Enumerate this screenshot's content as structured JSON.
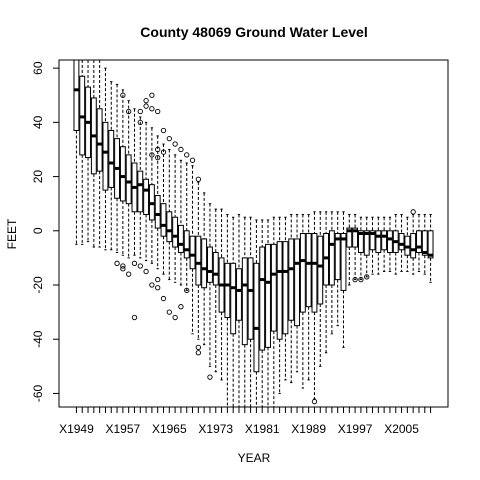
{
  "chart_data": {
    "type": "box",
    "title": "County 48069  Ground Water Level",
    "xlabel": "YEAR",
    "ylabel": "FEET",
    "ylim": [
      -65,
      63
    ],
    "yticks": [
      60,
      40,
      20,
      0,
      -20,
      -40,
      -60
    ],
    "xlim": [
      1946,
      2013
    ],
    "xtick_labels": [
      "X1949",
      "X1957",
      "X1965",
      "X1973",
      "X1981",
      "X1989",
      "X1997",
      "X2005"
    ],
    "grid": false,
    "boxes": [
      {
        "year": 1949,
        "q1": 37,
        "median": 52,
        "q3": 63,
        "whisker_low": -5,
        "whisker_high": 63,
        "outliers": []
      },
      {
        "year": 1950,
        "q1": 28,
        "median": 42,
        "q3": 57,
        "whisker_low": -5,
        "whisker_high": 63,
        "outliers": []
      },
      {
        "year": 1951,
        "q1": 27,
        "median": 40,
        "q3": 53,
        "whisker_low": -4,
        "whisker_high": 63,
        "outliers": []
      },
      {
        "year": 1952,
        "q1": 21,
        "median": 35,
        "q3": 49,
        "whisker_low": -6,
        "whisker_high": 63,
        "outliers": []
      },
      {
        "year": 1953,
        "q1": 22,
        "median": 32,
        "q3": 45,
        "whisker_low": -6,
        "whisker_high": 63,
        "outliers": []
      },
      {
        "year": 1954,
        "q1": 15,
        "median": 29,
        "q3": 40,
        "whisker_low": -7,
        "whisker_high": 60,
        "outliers": []
      },
      {
        "year": 1955,
        "q1": 16,
        "median": 25,
        "q3": 37,
        "whisker_low": -7,
        "whisker_high": 55,
        "outliers": []
      },
      {
        "year": 1956,
        "q1": 12,
        "median": 23,
        "q3": 34,
        "whisker_low": -8,
        "whisker_high": 54,
        "outliers": [
          -12
        ]
      },
      {
        "year": 1957,
        "q1": 11,
        "median": 20,
        "q3": 31,
        "whisker_low": -9,
        "whisker_high": 52,
        "outliers": [
          -13,
          -14,
          50
        ]
      },
      {
        "year": 1958,
        "q1": 10,
        "median": 18,
        "q3": 28,
        "whisker_low": -10,
        "whisker_high": 48,
        "outliers": [
          -16,
          44
        ]
      },
      {
        "year": 1959,
        "q1": 7,
        "median": 16,
        "q3": 25,
        "whisker_low": -9,
        "whisker_high": 45,
        "outliers": [
          -32,
          -12
        ]
      },
      {
        "year": 1960,
        "q1": 7,
        "median": 17,
        "q3": 22,
        "whisker_low": -10,
        "whisker_high": 42,
        "outliers": [
          -13,
          40,
          44
        ]
      },
      {
        "year": 1961,
        "q1": 6,
        "median": 15,
        "q3": 19,
        "whisker_low": -11,
        "whisker_high": 40,
        "outliers": [
          -15,
          46,
          48
        ]
      },
      {
        "year": 1962,
        "q1": 4,
        "median": 10,
        "q3": 17,
        "whisker_low": -12,
        "whisker_high": 38,
        "outliers": [
          -20,
          28,
          45,
          50
        ]
      },
      {
        "year": 1963,
        "q1": 1,
        "median": 6,
        "q3": 13,
        "whisker_low": -14,
        "whisker_high": 35,
        "outliers": [
          -21,
          -18,
          27,
          30,
          44
        ]
      },
      {
        "year": 1964,
        "q1": -2,
        "median": 2,
        "q3": 10,
        "whisker_low": -16,
        "whisker_high": 32,
        "outliers": [
          -25,
          29,
          37
        ]
      },
      {
        "year": 1965,
        "q1": -4,
        "median": 0,
        "q3": 7,
        "whisker_low": -18,
        "whisker_high": 30,
        "outliers": [
          -30,
          34
        ]
      },
      {
        "year": 1966,
        "q1": -6,
        "median": -2,
        "q3": 5,
        "whisker_low": -19,
        "whisker_high": 28,
        "outliers": [
          -32,
          32
        ]
      },
      {
        "year": 1967,
        "q1": -8,
        "median": -5,
        "q3": 2,
        "whisker_low": -20,
        "whisker_high": 26,
        "outliers": [
          -28,
          30
        ]
      },
      {
        "year": 1968,
        "q1": -10,
        "median": -7,
        "q3": 0,
        "whisker_low": -22,
        "whisker_high": 25,
        "outliers": [
          -22,
          28
        ]
      },
      {
        "year": 1969,
        "q1": -14,
        "median": -9,
        "q3": -2,
        "whisker_low": -38,
        "whisker_high": 24,
        "outliers": [
          26
        ]
      },
      {
        "year": 1970,
        "q1": -20,
        "median": -12,
        "q3": -2,
        "whisker_low": -40,
        "whisker_high": 18,
        "outliers": [
          -45,
          -43,
          19
        ]
      },
      {
        "year": 1971,
        "q1": -21,
        "median": -14,
        "q3": -3,
        "whisker_low": -42,
        "whisker_high": 14,
        "outliers": []
      },
      {
        "year": 1972,
        "q1": -19,
        "median": -15,
        "q3": -6,
        "whisker_low": -50,
        "whisker_high": 10,
        "outliers": [
          -54
        ]
      },
      {
        "year": 1973,
        "q1": -20,
        "median": -16,
        "q3": -8,
        "whisker_low": -52,
        "whisker_high": 8,
        "outliers": []
      },
      {
        "year": 1974,
        "q1": -30,
        "median": -20,
        "q3": -10,
        "whisker_low": -55,
        "whisker_high": 8,
        "outliers": []
      },
      {
        "year": 1975,
        "q1": -32,
        "median": -20,
        "q3": -12,
        "whisker_low": -65,
        "whisker_high": 6,
        "outliers": []
      },
      {
        "year": 1976,
        "q1": -38,
        "median": -21,
        "q3": -12,
        "whisker_low": -65,
        "whisker_high": 5,
        "outliers": []
      },
      {
        "year": 1977,
        "q1": -33,
        "median": -22,
        "q3": -14,
        "whisker_low": -65,
        "whisker_high": 6,
        "outliers": []
      },
      {
        "year": 1978,
        "q1": -42,
        "median": -20,
        "q3": -10,
        "whisker_low": -65,
        "whisker_high": 5,
        "outliers": []
      },
      {
        "year": 1979,
        "q1": -40,
        "median": -22,
        "q3": -10,
        "whisker_low": -65,
        "whisker_high": 5,
        "outliers": []
      },
      {
        "year": 1980,
        "q1": -52,
        "median": -36,
        "q3": -12,
        "whisker_low": -65,
        "whisker_high": 4,
        "outliers": []
      },
      {
        "year": 1981,
        "q1": -44,
        "median": -18,
        "q3": -6,
        "whisker_low": -65,
        "whisker_high": 4,
        "outliers": []
      },
      {
        "year": 1982,
        "q1": -43,
        "median": -19,
        "q3": -5,
        "whisker_low": -65,
        "whisker_high": 4,
        "outliers": []
      },
      {
        "year": 1983,
        "q1": -37,
        "median": -16,
        "q3": -5,
        "whisker_low": -65,
        "whisker_high": 5,
        "outliers": []
      },
      {
        "year": 1984,
        "q1": -40,
        "median": -15,
        "q3": -4,
        "whisker_low": -60,
        "whisker_high": 5,
        "outliers": []
      },
      {
        "year": 1985,
        "q1": -38,
        "median": -15,
        "q3": -4,
        "whisker_low": -55,
        "whisker_high": 5,
        "outliers": []
      },
      {
        "year": 1986,
        "q1": -33,
        "median": -14,
        "q3": -3,
        "whisker_low": -56,
        "whisker_high": 6,
        "outliers": []
      },
      {
        "year": 1987,
        "q1": -35,
        "median": -12,
        "q3": -3,
        "whisker_low": -52,
        "whisker_high": 6,
        "outliers": []
      },
      {
        "year": 1988,
        "q1": -30,
        "median": -11,
        "q3": -1,
        "whisker_low": -58,
        "whisker_high": 6,
        "outliers": []
      },
      {
        "year": 1989,
        "q1": -28,
        "median": -12,
        "q3": -1,
        "whisker_low": -55,
        "whisker_high": 6,
        "outliers": []
      },
      {
        "year": 1990,
        "q1": -30,
        "median": -12,
        "q3": -1,
        "whisker_low": -62,
        "whisker_high": 7,
        "outliers": [
          -63
        ]
      },
      {
        "year": 1991,
        "q1": -27,
        "median": -13,
        "q3": -2,
        "whisker_low": -50,
        "whisker_high": 7,
        "outliers": []
      },
      {
        "year": 1992,
        "q1": -20,
        "median": -10,
        "q3": -1,
        "whisker_low": -45,
        "whisker_high": 7,
        "outliers": []
      },
      {
        "year": 1993,
        "q1": -20,
        "median": -5,
        "q3": 0,
        "whisker_low": -38,
        "whisker_high": 7,
        "outliers": []
      },
      {
        "year": 1994,
        "q1": -18,
        "median": -3,
        "q3": -1,
        "whisker_low": -35,
        "whisker_high": 7,
        "outliers": []
      },
      {
        "year": 1995,
        "q1": -22,
        "median": -3,
        "q3": -1,
        "whisker_low": -43,
        "whisker_high": 7,
        "outliers": []
      },
      {
        "year": 1996,
        "q1": -6,
        "median": 0,
        "q3": 1,
        "whisker_low": -20,
        "whisker_high": 6,
        "outliers": []
      },
      {
        "year": 1997,
        "q1": -6,
        "median": 0,
        "q3": 1,
        "whisker_low": -18,
        "whisker_high": 6,
        "outliers": [
          -18
        ]
      },
      {
        "year": 1998,
        "q1": -8,
        "median": -1,
        "q3": 0,
        "whisker_low": -18,
        "whisker_high": 5,
        "outliers": [
          -18
        ]
      },
      {
        "year": 1999,
        "q1": -9,
        "median": -1,
        "q3": 0,
        "whisker_low": -17,
        "whisker_high": 5,
        "outliers": [
          -17
        ]
      },
      {
        "year": 2000,
        "q1": -7,
        "median": -1,
        "q3": 0,
        "whisker_low": -16,
        "whisker_high": 5,
        "outliers": []
      },
      {
        "year": 2001,
        "q1": -8,
        "median": -2,
        "q3": 0,
        "whisker_low": -16,
        "whisker_high": 5,
        "outliers": []
      },
      {
        "year": 2002,
        "q1": -7,
        "median": -2,
        "q3": 0,
        "whisker_low": -15,
        "whisker_high": 5,
        "outliers": []
      },
      {
        "year": 2003,
        "q1": -8,
        "median": -3,
        "q3": 0,
        "whisker_low": -15,
        "whisker_high": 5,
        "outliers": []
      },
      {
        "year": 2004,
        "q1": -8,
        "median": -4,
        "q3": 0,
        "whisker_low": -16,
        "whisker_high": 6,
        "outliers": []
      },
      {
        "year": 2005,
        "q1": -7,
        "median": -5,
        "q3": -1,
        "whisker_low": -15,
        "whisker_high": 6,
        "outliers": []
      },
      {
        "year": 2006,
        "q1": -9,
        "median": -6,
        "q3": -2,
        "whisker_low": -15,
        "whisker_high": 5,
        "outliers": []
      },
      {
        "year": 2007,
        "q1": -10,
        "median": -7,
        "q3": -1,
        "whisker_low": -16,
        "whisker_high": 6,
        "outliers": [
          7
        ]
      },
      {
        "year": 2008,
        "q1": -8,
        "median": -6,
        "q3": 0,
        "whisker_low": -15,
        "whisker_high": 6,
        "outliers": []
      },
      {
        "year": 2009,
        "q1": -9,
        "median": -8,
        "q3": 0,
        "whisker_low": -16,
        "whisker_high": 6,
        "outliers": []
      },
      {
        "year": 2010,
        "q1": -10,
        "median": -9,
        "q3": 0,
        "whisker_low": -19,
        "whisker_high": 6,
        "outliers": []
      }
    ]
  }
}
